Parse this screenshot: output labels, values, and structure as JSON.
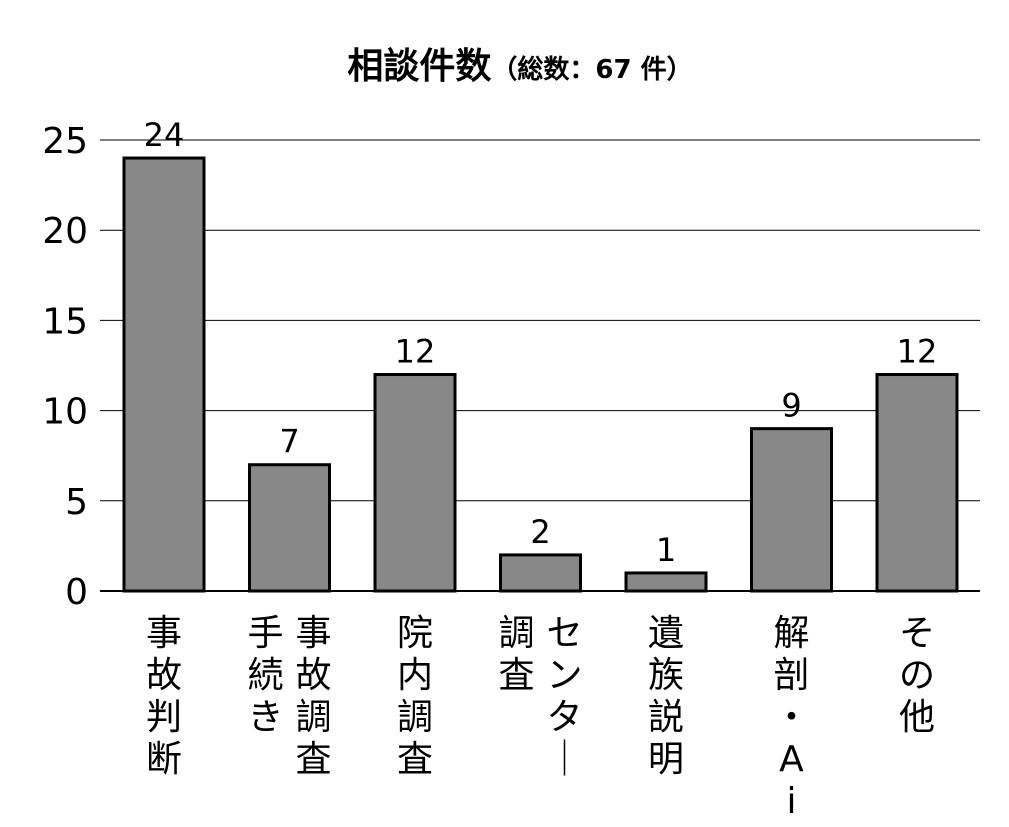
{
  "chart_data": {
    "type": "bar",
    "title": "相談件数",
    "subtitle": "（総数：67 件）",
    "categories": [
      "事故判断",
      "事故調査手続き",
      "院内調査",
      "センター調査",
      "遺族説明",
      "解剖・Ai",
      "その他"
    ],
    "category_label_lines": [
      [
        "事故判断"
      ],
      [
        "事故調査",
        "手続き"
      ],
      [
        "院内調査"
      ],
      [
        "センター",
        "調査"
      ],
      [
        "遺族説明"
      ],
      [
        "解剖・Ai"
      ],
      [
        "その他"
      ]
    ],
    "values": [
      24,
      7,
      12,
      2,
      1,
      9,
      12
    ],
    "value_labels": [
      "24",
      "7",
      "12",
      "2",
      "1",
      "9",
      "12"
    ],
    "ylim": [
      0,
      25
    ],
    "yticks": [
      0,
      5,
      10,
      15,
      20,
      25
    ],
    "ytick_labels": [
      "0",
      "5",
      "10",
      "15",
      "20",
      "25"
    ],
    "grid": true,
    "bar_color": "#888888",
    "bar_edge_color": "#000000",
    "xlabel": "",
    "ylabel": ""
  }
}
